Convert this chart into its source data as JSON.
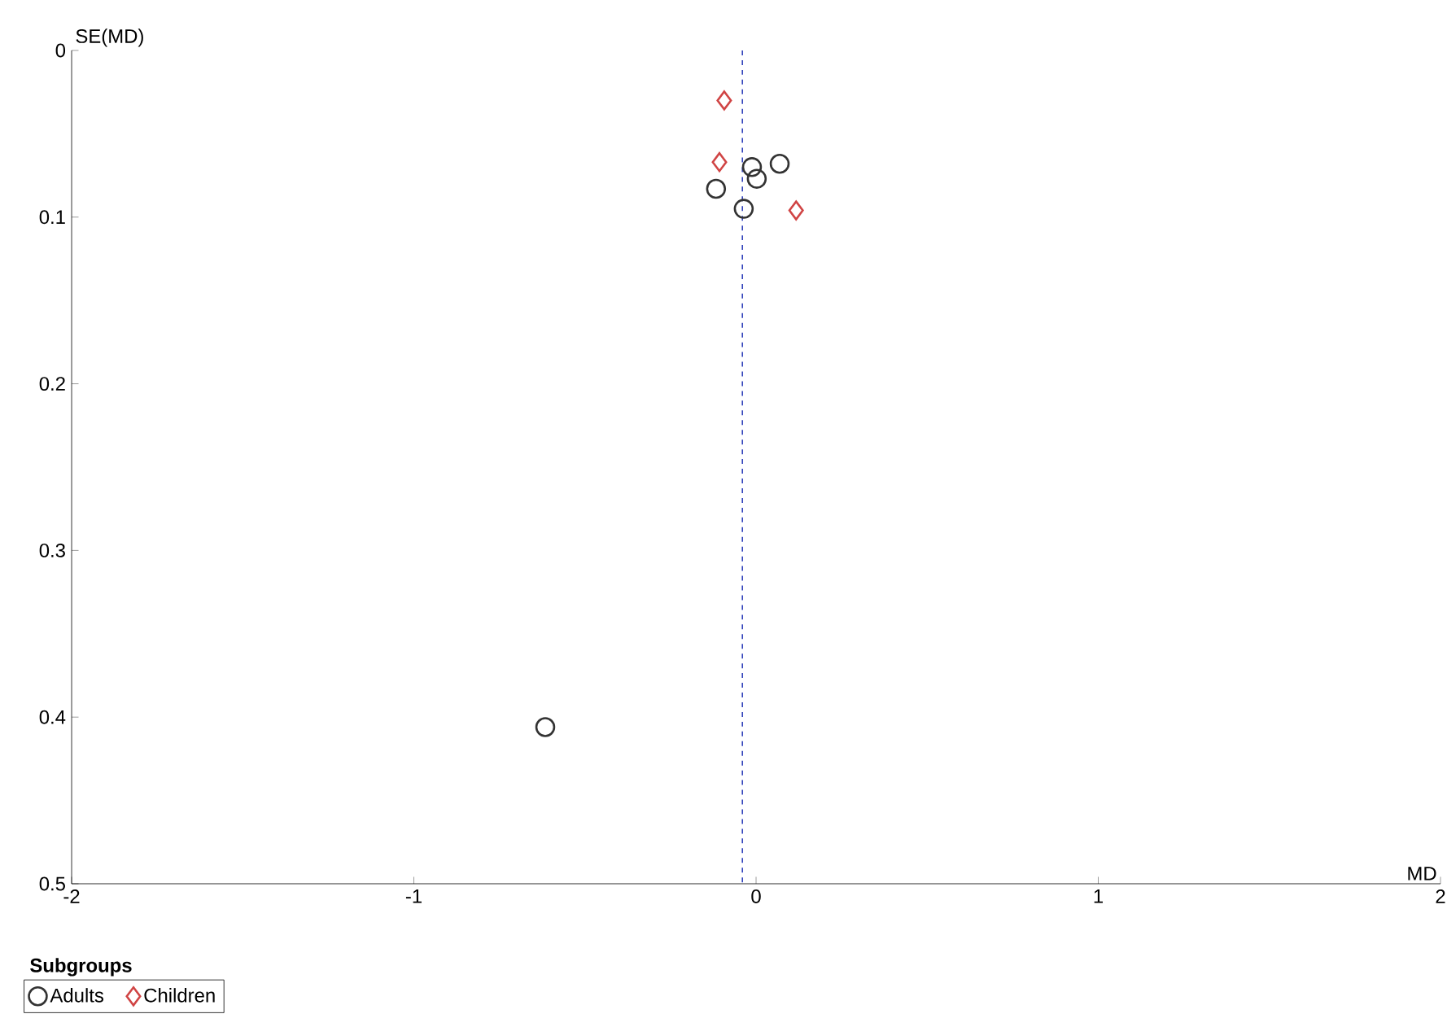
{
  "chart_data": {
    "type": "scatter",
    "xlabel": "MD",
    "ylabel": "SE(MD)",
    "legend_title": "Subgroups",
    "legend": "bottom",
    "xlim": [
      -2,
      2
    ],
    "ylim": [
      0.5,
      0
    ],
    "xticks": [
      -2,
      -1,
      0,
      1,
      2
    ],
    "yticks": [
      0,
      0.1,
      0.2,
      0.3,
      0.4,
      0.5
    ],
    "grid": false,
    "series": [
      {
        "name": "Adults",
        "color": "#333333",
        "marker": "circle",
        "x": [
          -0.117,
          -0.012,
          0.069,
          0.002,
          -0.036,
          -0.616
        ],
        "values": [
          0.083,
          0.07,
          0.068,
          0.077,
          0.095,
          0.406
        ]
      },
      {
        "name": "Children",
        "color": "#d04444",
        "marker": "diamond",
        "x": [
          -0.093,
          -0.107,
          0.117
        ],
        "values": [
          0.03,
          0.067,
          0.096
        ]
      }
    ],
    "ref_lines": [
      {
        "axis": "x",
        "value": -0.04,
        "color": "#3344bb",
        "line_style": "dashed"
      }
    ]
  }
}
